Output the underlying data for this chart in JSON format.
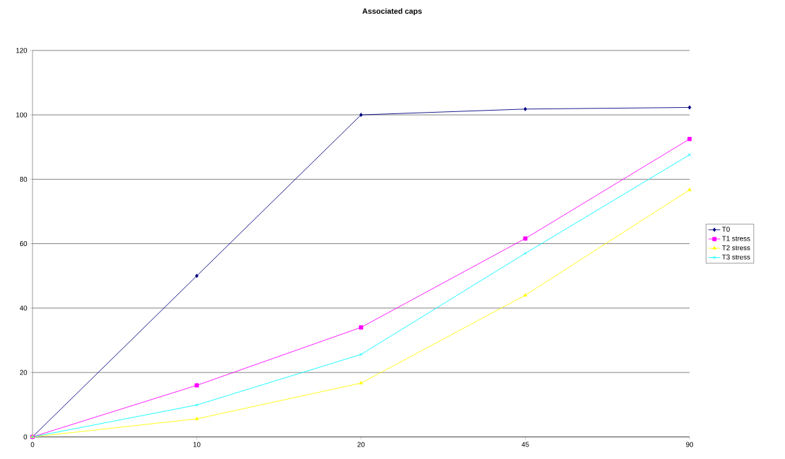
{
  "chart_data": {
    "type": "line",
    "title": "Associated caps",
    "categories": [
      "0",
      "10",
      "20",
      "45",
      "90"
    ],
    "series": [
      {
        "name": "T0",
        "color": "#000080",
        "marker": "diamond",
        "values": [
          0,
          50,
          100,
          101.8,
          102.3
        ]
      },
      {
        "name": "T1 stress",
        "color": "#ff00ff",
        "marker": "square",
        "values": [
          0,
          16,
          34,
          61.6,
          92.5
        ]
      },
      {
        "name": "T2 stress",
        "color": "#ffff00",
        "marker": "triangle",
        "values": [
          0,
          5.6,
          16.7,
          44,
          76.7
        ]
      },
      {
        "name": "T3 stress",
        "color": "#00ffff",
        "marker": "cross",
        "values": [
          0,
          9.9,
          25.6,
          57,
          87.6
        ]
      }
    ],
    "ylim": [
      0,
      120
    ],
    "yticks": [
      0,
      20,
      40,
      60,
      80,
      100,
      120
    ],
    "grid": "y",
    "legend": "right",
    "line_style": "solid"
  }
}
